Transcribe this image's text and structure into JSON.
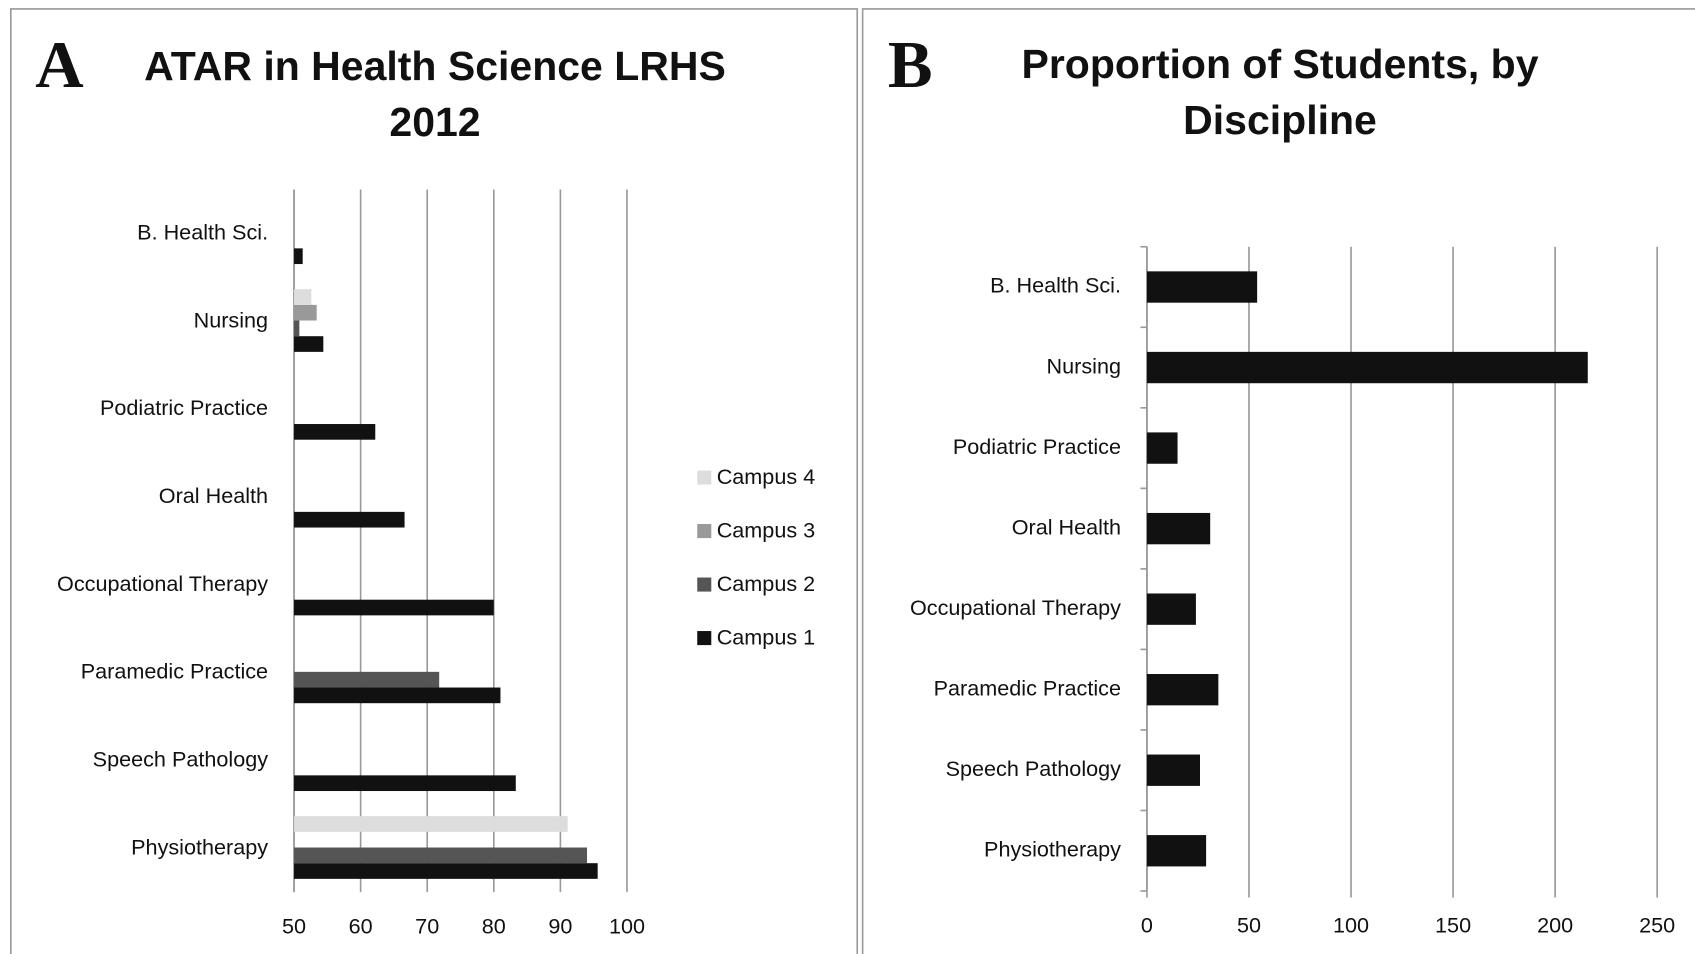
{
  "chart_data": [
    {
      "type": "bar",
      "orientation": "horizontal",
      "panel_label": "A",
      "title": "ATAR in Health Science LRHS 2012",
      "categories": [
        "B. Health Sci.",
        "Nursing",
        "Podiatric Practice",
        "Oral Health",
        "Occupational Therapy",
        "Paramedic Practice",
        "Speech Pathology",
        "Physiotherapy"
      ],
      "series": [
        {
          "name": "Campus 1",
          "color": "#111111",
          "values": [
            51.3,
            54.4,
            62.2,
            66.6,
            80.0,
            81.0,
            83.3,
            95.6
          ]
        },
        {
          "name": "Campus 2",
          "color": "#555555",
          "values": [
            null,
            50.8,
            null,
            null,
            null,
            71.8,
            null,
            94.0
          ]
        },
        {
          "name": "Campus 3",
          "color": "#999999",
          "values": [
            null,
            53.4,
            null,
            null,
            null,
            null,
            null,
            null
          ]
        },
        {
          "name": "Campus 4",
          "color": "#dddddd",
          "values": [
            null,
            52.6,
            null,
            null,
            null,
            null,
            null,
            91.1
          ]
        }
      ],
      "xlim": [
        50,
        100
      ],
      "xticks": [
        50,
        60,
        70,
        80,
        90,
        100
      ],
      "grid": true,
      "legend": "right"
    },
    {
      "type": "bar",
      "orientation": "horizontal",
      "panel_label": "B",
      "title": "Proportion of Students, by Discipline",
      "categories": [
        "B. Health Sci.",
        "Nursing",
        "Podiatric Practice",
        "Oral Health",
        "Occupational Therapy",
        "Paramedic Practice",
        "Speech Pathology",
        "Physiotherapy"
      ],
      "series": [
        {
          "color": "#111111",
          "values": [
            54,
            216,
            15,
            31,
            24,
            35,
            26,
            29
          ]
        }
      ],
      "xlim": [
        0,
        250
      ],
      "xticks": [
        0,
        50,
        100,
        150,
        200,
        250
      ],
      "grid": true
    }
  ]
}
